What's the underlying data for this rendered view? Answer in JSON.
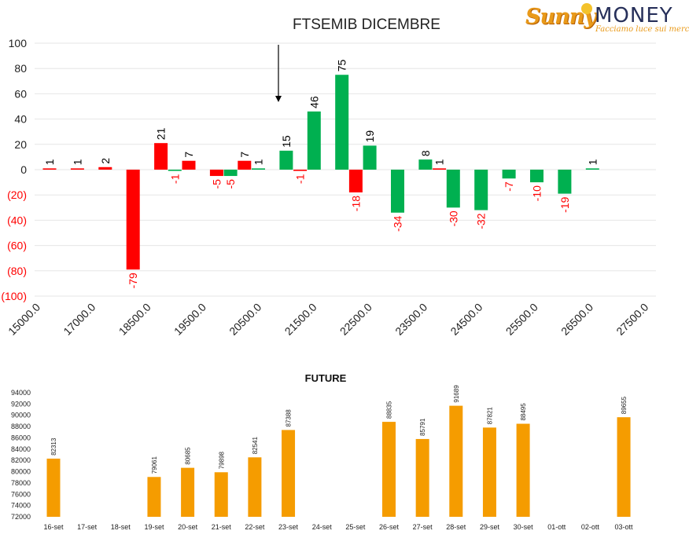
{
  "brand": {
    "logo_sunny": "Sunny",
    "logo_money": "MONEY",
    "tagline": "Facciamo luce sui mercati"
  },
  "colors": {
    "positive": "#00b050",
    "negative": "#ff0000",
    "future_bar": "#f59c00",
    "grid": "#e6e6e6",
    "negative_label": "#ff0000",
    "positive_label": "#000000"
  },
  "chart_data": [
    {
      "type": "bar",
      "title": "FTSEMIB DICEMBRE",
      "xlabel": "",
      "ylabel": "",
      "ylim": [
        -100,
        100
      ],
      "yticks": [
        "100",
        "80",
        "60",
        "40",
        "20",
        "0",
        "(20)",
        "(40)",
        "(60)",
        "(80)",
        "(100)"
      ],
      "ytick_values": [
        100,
        80,
        60,
        40,
        20,
        0,
        -20,
        -40,
        -60,
        -80,
        -100
      ],
      "xticks": [
        "15000.0",
        "17000.0",
        "18500.0",
        "19500.0",
        "20500.0",
        "21500.0",
        "22500.0",
        "23500.0",
        "24500.0",
        "25500.0",
        "26500.0",
        "27500.0"
      ],
      "grid": true,
      "legend": "none",
      "annotation": "arrow pointing down toward the 21000 strike",
      "bars": [
        {
          "slot": 0,
          "value": 1,
          "color": "negative"
        },
        {
          "slot": 1,
          "value": 1,
          "color": "negative"
        },
        {
          "slot": 2,
          "value": 2,
          "color": "negative"
        },
        {
          "slot": 3,
          "value": -79,
          "color": "negative"
        },
        {
          "slot": 4,
          "value": 21,
          "color": "negative"
        },
        {
          "slot": 4.5,
          "value": -1,
          "color": "positive"
        },
        {
          "slot": 5,
          "value": 7,
          "color": "negative"
        },
        {
          "slot": 6,
          "value": -5,
          "color": "negative"
        },
        {
          "slot": 6.5,
          "value": -5,
          "color": "positive"
        },
        {
          "slot": 7,
          "value": 7,
          "color": "negative"
        },
        {
          "slot": 7.5,
          "value": 1,
          "color": "positive"
        },
        {
          "slot": 8.5,
          "value": 15,
          "color": "positive"
        },
        {
          "slot": 9,
          "value": -1,
          "color": "negative"
        },
        {
          "slot": 9.5,
          "value": 46,
          "color": "positive"
        },
        {
          "slot": 10.5,
          "value": 75,
          "color": "positive"
        },
        {
          "slot": 11,
          "value": -18,
          "color": "negative"
        },
        {
          "slot": 11.5,
          "value": 19,
          "color": "positive"
        },
        {
          "slot": 12.5,
          "value": -34,
          "color": "positive"
        },
        {
          "slot": 13.5,
          "value": 8,
          "color": "positive"
        },
        {
          "slot": 14,
          "value": 1,
          "color": "negative"
        },
        {
          "slot": 14.5,
          "value": -30,
          "color": "positive"
        },
        {
          "slot": 15.5,
          "value": -32,
          "color": "positive"
        },
        {
          "slot": 16.5,
          "value": -7,
          "color": "positive"
        },
        {
          "slot": 17.5,
          "value": -10,
          "color": "positive"
        },
        {
          "slot": 18.5,
          "value": -19,
          "color": "positive"
        },
        {
          "slot": 19.5,
          "value": 1,
          "color": "positive"
        }
      ]
    },
    {
      "type": "bar",
      "title": "FUTURE",
      "xlabel": "",
      "ylabel": "",
      "ylim": [
        72000,
        94000
      ],
      "yticks": [
        "94000",
        "92000",
        "90000",
        "88000",
        "86000",
        "84000",
        "82000",
        "80000",
        "78000",
        "76000",
        "74000",
        "72000"
      ],
      "ytick_values": [
        94000,
        92000,
        90000,
        88000,
        86000,
        84000,
        82000,
        80000,
        78000,
        76000,
        74000,
        72000
      ],
      "grid": false,
      "legend": "none",
      "categories": [
        "16-set",
        "17-set",
        "18-set",
        "19-set",
        "20-set",
        "21-set",
        "22-set",
        "23-set",
        "24-set",
        "25-set",
        "26-set",
        "27-set",
        "28-set",
        "29-set",
        "30-set",
        "01-ott",
        "02-ott",
        "03-ott"
      ],
      "values": [
        82313,
        null,
        null,
        79061,
        80685,
        79898,
        82541,
        87388,
        null,
        null,
        88835,
        85791,
        91689,
        87821,
        88495,
        null,
        null,
        89655
      ],
      "value_labels": [
        "82313",
        "",
        "",
        "79061",
        "80685",
        "79898",
        "82541",
        "87388",
        "",
        "",
        "88835",
        "85791",
        "91689",
        "87821",
        "88495",
        "",
        "",
        "89655"
      ]
    }
  ]
}
